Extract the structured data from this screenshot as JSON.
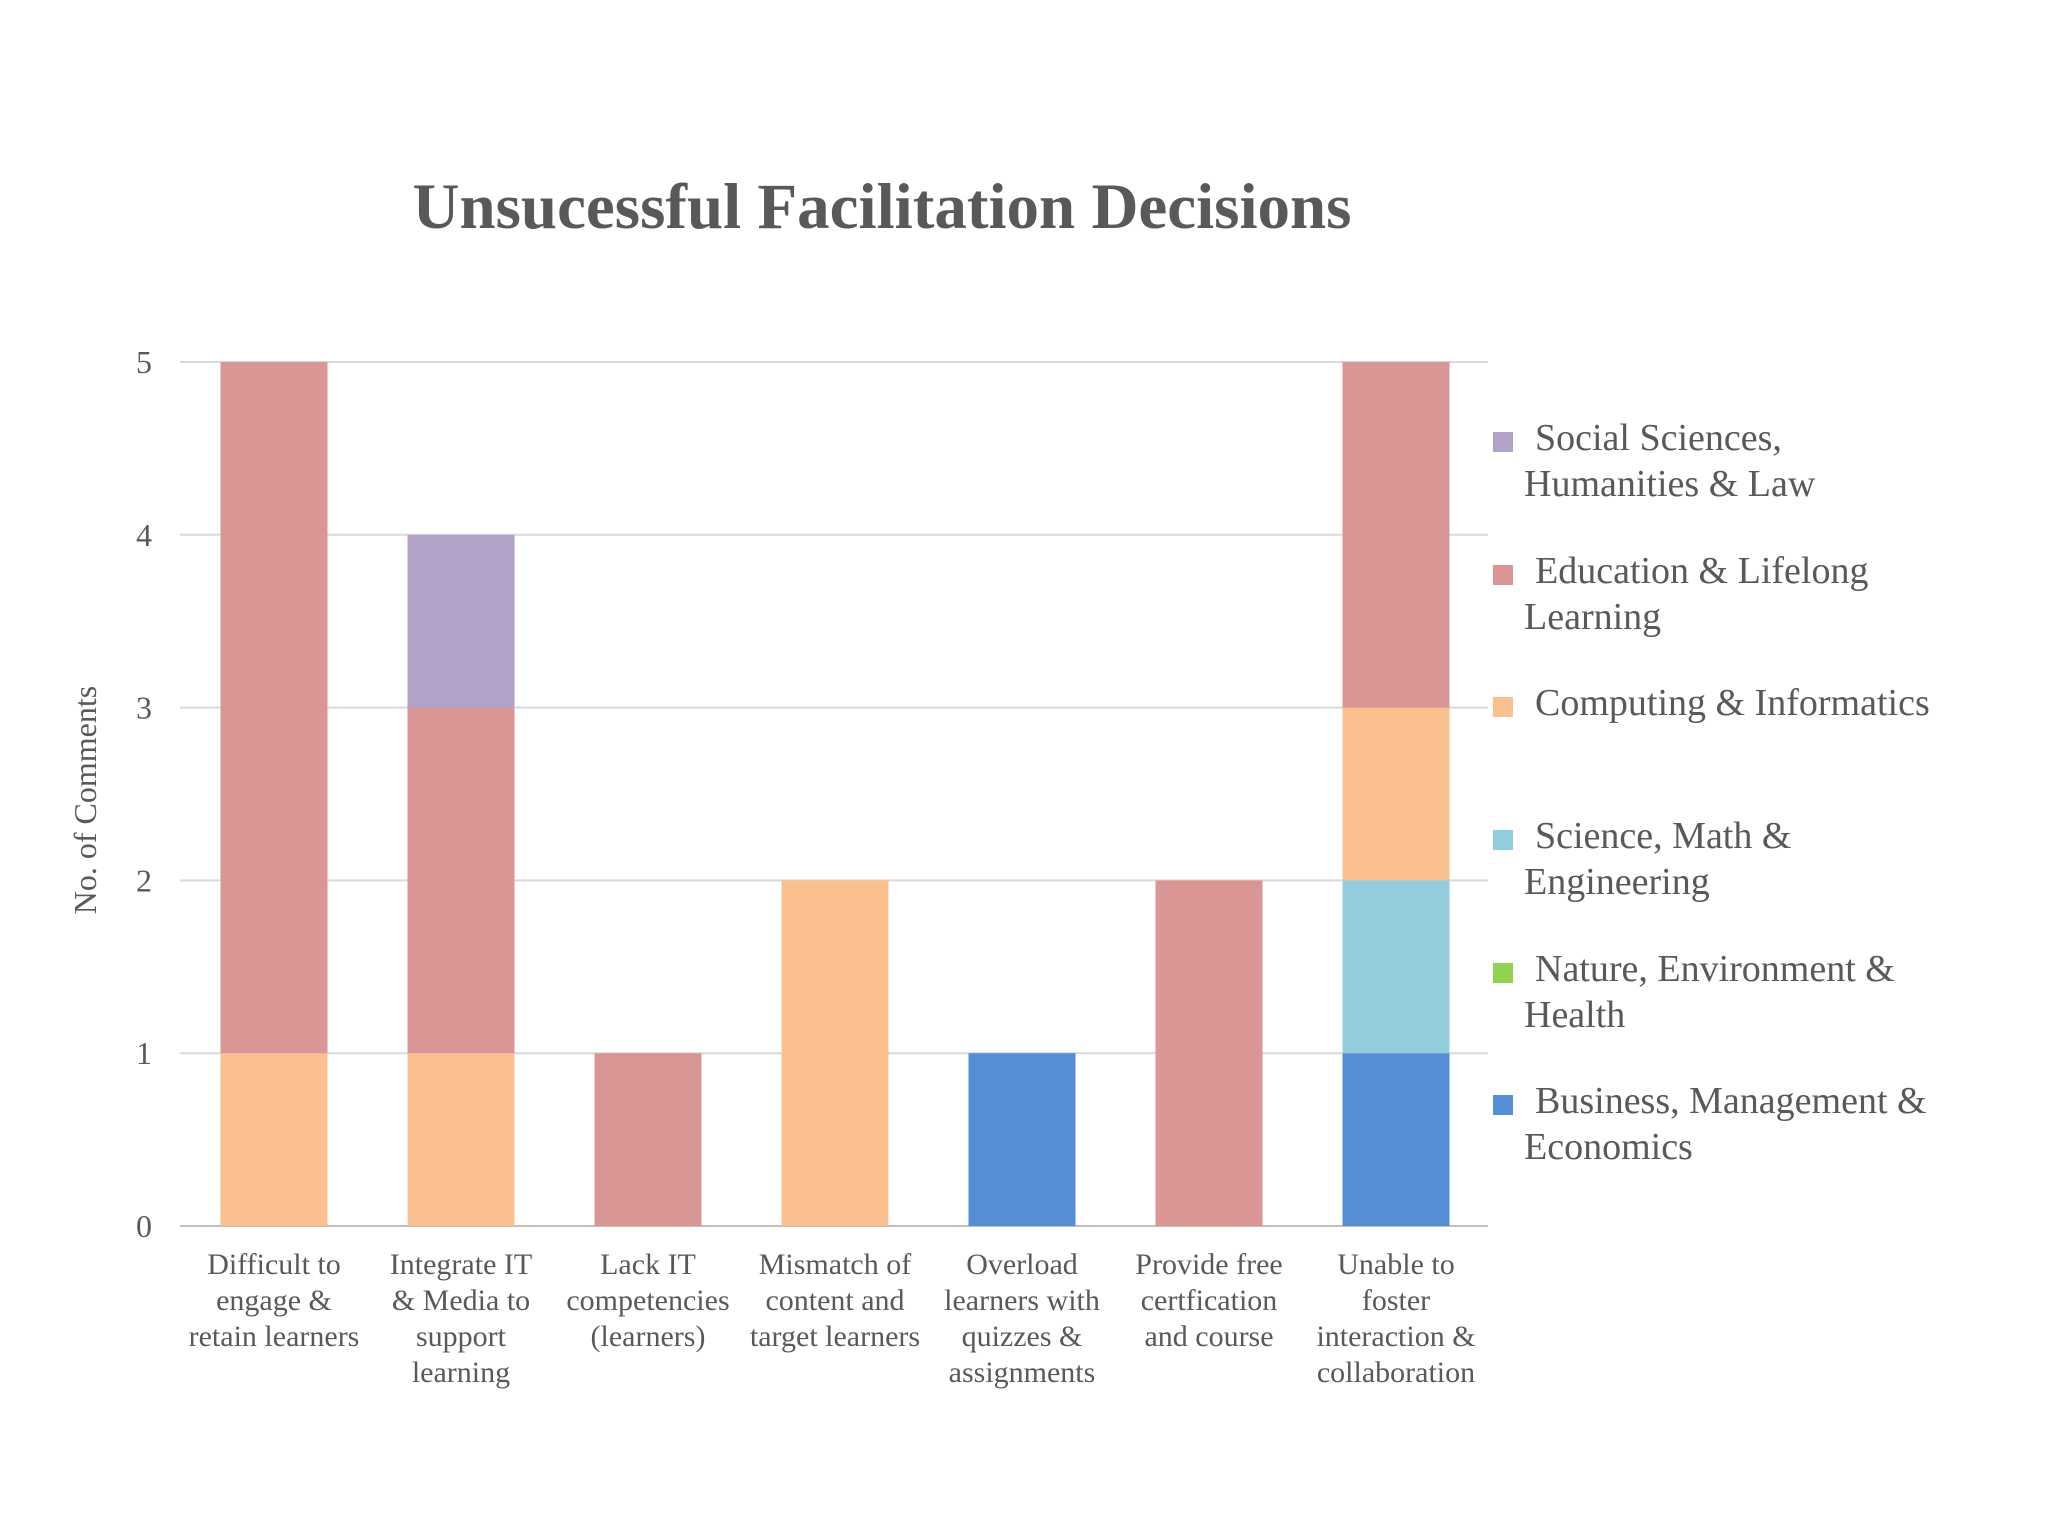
{
  "chart_data": {
    "type": "bar",
    "stacked": true,
    "title": "Unsucessful Facilitation Decisions",
    "xlabel": "",
    "ylabel": "No. of Comments",
    "ylim": [
      0,
      5
    ],
    "yticks": [
      0,
      1,
      2,
      3,
      4,
      5
    ],
    "grid": true,
    "legend_position": "right",
    "categories": [
      [
        "Difficult to",
        "engage &",
        "retain learners"
      ],
      [
        "Integrate IT",
        "& Media to",
        "support",
        "learning"
      ],
      [
        "Lack IT",
        "competencies",
        "(learners)"
      ],
      [
        "Mismatch of",
        "content and",
        "target learners"
      ],
      [
        "Overload",
        "learners with",
        "quizzes &",
        "assignments"
      ],
      [
        "Provide free",
        "certfication",
        "and course"
      ],
      [
        "Unable to",
        "foster",
        "interaction &",
        "collaboration"
      ]
    ],
    "series": [
      {
        "name": "Business, Management & Economics",
        "legend_lines": [
          "Business, Management &",
          "Economics"
        ],
        "color": "#558ed5",
        "values": [
          0,
          0,
          0,
          0,
          1,
          0,
          1
        ]
      },
      {
        "name": "Nature, Environment & Health",
        "legend_lines": [
          "Nature, Environment &",
          "Health"
        ],
        "color": "#92d050",
        "values": [
          0,
          0,
          0,
          0,
          0,
          0,
          0
        ]
      },
      {
        "name": "Science, Math & Engineering",
        "legend_lines": [
          "Science, Math &",
          "Engineering"
        ],
        "color": "#93cddd",
        "values": [
          0,
          0,
          0,
          0,
          0,
          0,
          1
        ]
      },
      {
        "name": "Computing & Informatics",
        "legend_lines": [
          "Computing & Informatics"
        ],
        "color": "#fac090",
        "values": [
          1,
          1,
          0,
          2,
          0,
          0,
          1
        ]
      },
      {
        "name": "Education & Lifelong Learning",
        "legend_lines": [
          "Education & Lifelong",
          "Learning"
        ],
        "color": "#d99694",
        "values": [
          4,
          2,
          1,
          0,
          0,
          2,
          2
        ]
      },
      {
        "name": "Social Sciences, Humanities & Law",
        "legend_lines": [
          "Social Sciences,",
          "Humanities & Law"
        ],
        "color": "#b3a2c7",
        "values": [
          0,
          1,
          0,
          0,
          0,
          0,
          0
        ]
      }
    ]
  }
}
